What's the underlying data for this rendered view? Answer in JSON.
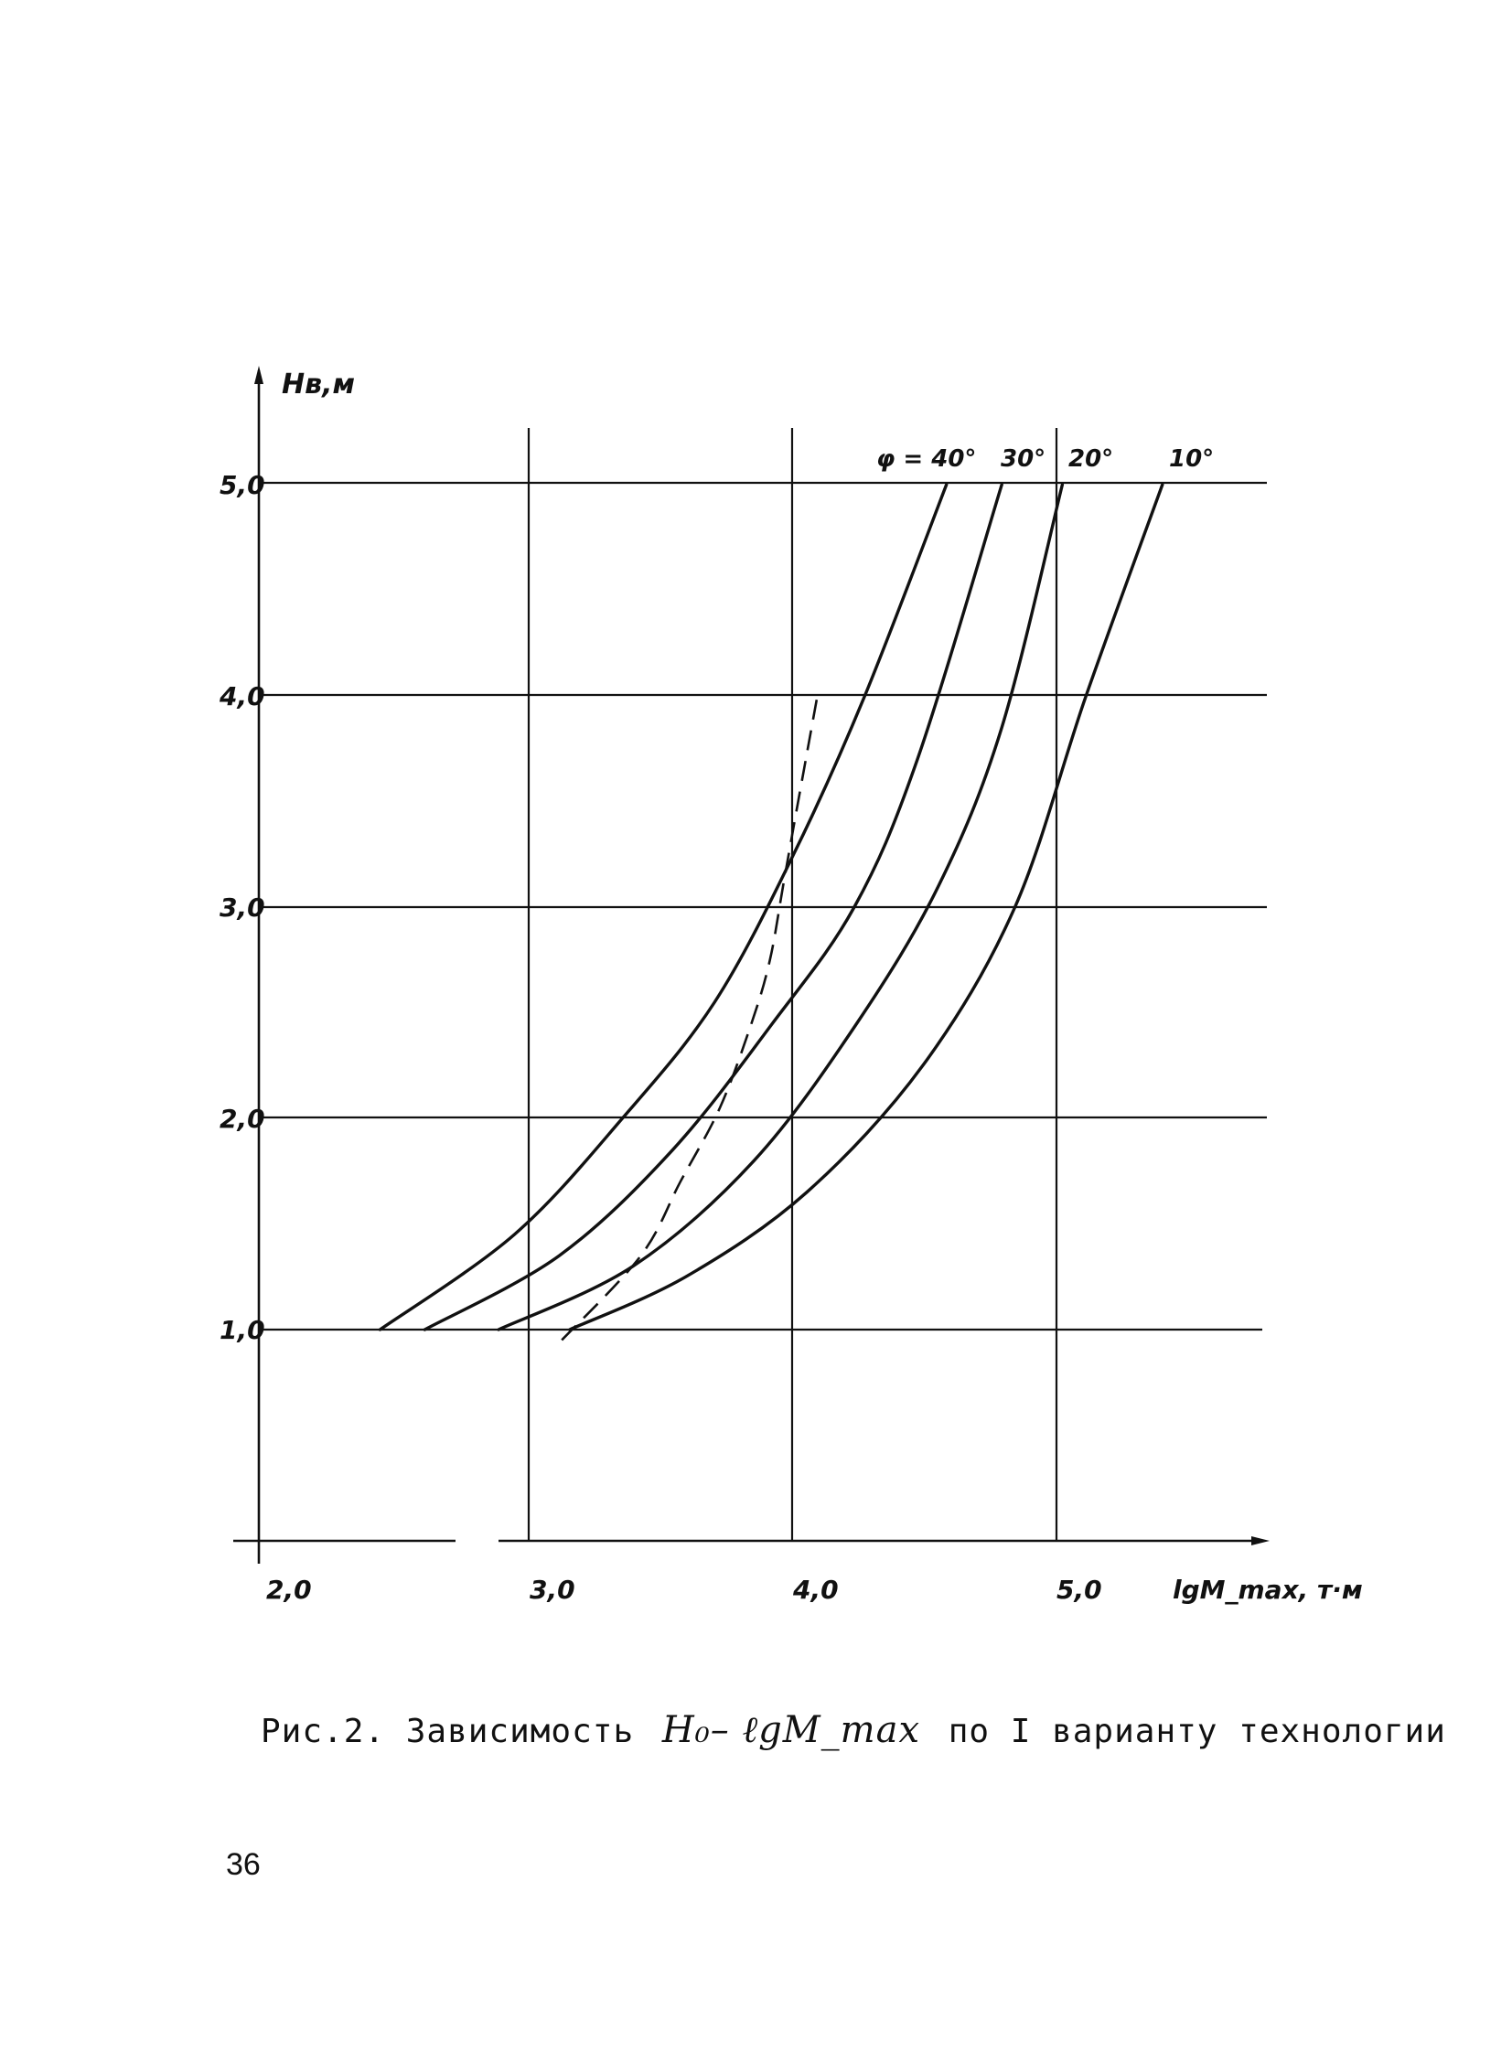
{
  "chart_data": {
    "type": "line",
    "title": "",
    "xlabel": "lgM_max, т·м",
    "ylabel": "Hв,м",
    "xlim": [
      2.0,
      5.8
    ],
    "ylim": [
      0,
      5.5
    ],
    "x_ticks": [
      "2,0",
      "3,0",
      "4,0",
      "5,0"
    ],
    "x_tick_values": [
      2.0,
      3.0,
      4.0,
      5.0
    ],
    "y_ticks": [
      "1,0",
      "2,0",
      "3,0",
      "4,0",
      "5,0"
    ],
    "y_tick_values": [
      1.0,
      2.0,
      3.0,
      4.0,
      5.0
    ],
    "grid": true,
    "series": [
      {
        "name": "φ = 40°",
        "label": "φ = 40°",
        "x": [
          2.46,
          2.97,
          3.38,
          3.73,
          4.03,
          4.3,
          4.61
        ],
        "y": [
          1.0,
          1.45,
          2.0,
          2.55,
          3.25,
          4.0,
          5.0
        ]
      },
      {
        "name": "30°",
        "label": "30°",
        "x": [
          2.63,
          3.14,
          3.57,
          3.95,
          4.26,
          4.5,
          4.82
        ],
        "y": [
          1.0,
          1.35,
          1.85,
          2.45,
          3.0,
          3.7,
          5.0
        ]
      },
      {
        "name": "20°",
        "label": "20°",
        "x": [
          2.91,
          3.42,
          3.88,
          4.27,
          4.58,
          4.82,
          5.05
        ],
        "y": [
          1.0,
          1.3,
          1.8,
          2.45,
          3.1,
          3.85,
          5.0
        ]
      },
      {
        "name": "10°",
        "label": "10°",
        "x": [
          3.18,
          3.62,
          4.08,
          4.52,
          4.87,
          5.14,
          5.43
        ],
        "y": [
          1.0,
          1.25,
          1.65,
          2.25,
          3.0,
          4.0,
          5.0
        ]
      }
    ],
    "dashed_series": {
      "x": [
        3.15,
        3.45,
        3.6,
        3.75,
        3.87,
        3.94,
        3.99,
        4.04,
        4.12
      ],
      "y": [
        0.95,
        1.35,
        1.7,
        2.05,
        2.45,
        2.75,
        3.1,
        3.45,
        4.0
      ]
    }
  },
  "caption": {
    "prefix": "Рис.2. Зависимость",
    "formula": "H₀– ℓgM_max",
    "suffix": "по I варианту технологии"
  },
  "page_number": "36"
}
